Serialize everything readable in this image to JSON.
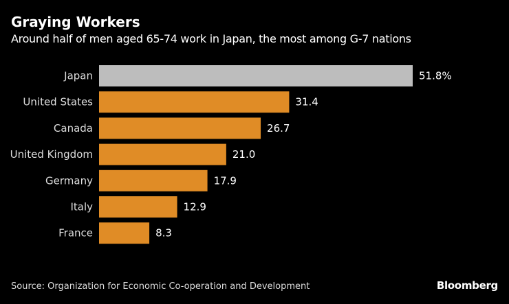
{
  "chart_data": {
    "type": "bar",
    "orientation": "horizontal",
    "title": "Graying Workers",
    "subtitle": "Around half of men aged 65-74 work in Japan, the most among G-7 nations",
    "categories": [
      "Japan",
      "United States",
      "Canada",
      "United Kingdom",
      "Germany",
      "Italy",
      "France"
    ],
    "values": [
      51.8,
      31.4,
      26.7,
      21.0,
      17.9,
      12.9,
      8.3
    ],
    "data_labels": [
      "51.8%",
      "31.4",
      "26.7",
      "21.0",
      "17.9",
      "12.9",
      "8.3"
    ],
    "unit": "%",
    "xlim": [
      0,
      51.8
    ],
    "grid": false,
    "colors": {
      "highlight": "#bdbdbd",
      "default": "#e08c26"
    },
    "highlight_index": 0
  },
  "footer": {
    "source": "Source: Organization for Economic Co-operation and Development",
    "logo": "Bloomberg"
  }
}
